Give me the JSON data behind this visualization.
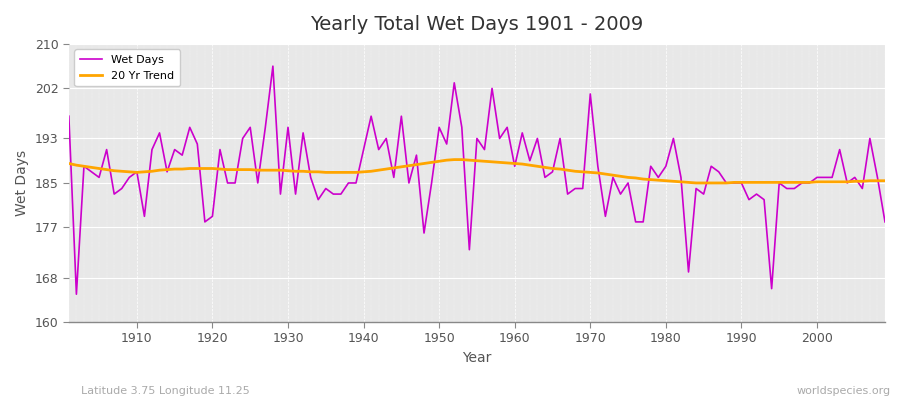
{
  "title": "Yearly Total Wet Days 1901 - 2009",
  "xlabel": "Year",
  "ylabel": "Wet Days",
  "bottom_left_label": "Latitude 3.75 Longitude 11.25",
  "bottom_right_label": "worldspecies.org",
  "ylim": [
    160,
    210
  ],
  "yticks": [
    160,
    168,
    177,
    185,
    193,
    202,
    210
  ],
  "xlim": [
    1901,
    2009
  ],
  "fig_bg_color": "#ffffff",
  "plot_bg_color": "#e8e8e8",
  "line_color": "#cc00cc",
  "trend_color": "#ffa500",
  "years": [
    1901,
    1902,
    1903,
    1904,
    1905,
    1906,
    1907,
    1908,
    1909,
    1910,
    1911,
    1912,
    1913,
    1914,
    1915,
    1916,
    1917,
    1918,
    1919,
    1920,
    1921,
    1922,
    1923,
    1924,
    1925,
    1926,
    1927,
    1928,
    1929,
    1930,
    1931,
    1932,
    1933,
    1934,
    1935,
    1936,
    1937,
    1938,
    1939,
    1940,
    1941,
    1942,
    1943,
    1944,
    1945,
    1946,
    1947,
    1948,
    1949,
    1950,
    1951,
    1952,
    1953,
    1954,
    1955,
    1956,
    1957,
    1958,
    1959,
    1960,
    1961,
    1962,
    1963,
    1964,
    1965,
    1966,
    1967,
    1968,
    1969,
    1970,
    1971,
    1972,
    1973,
    1974,
    1975,
    1976,
    1977,
    1978,
    1979,
    1980,
    1981,
    1982,
    1983,
    1984,
    1985,
    1986,
    1987,
    1988,
    1989,
    1990,
    1991,
    1992,
    1993,
    1994,
    1995,
    1996,
    1997,
    1998,
    1999,
    2000,
    2001,
    2002,
    2003,
    2004,
    2005,
    2006,
    2007,
    2008,
    2009
  ],
  "wet_days": [
    197,
    165,
    188,
    187,
    186,
    191,
    183,
    184,
    186,
    187,
    179,
    191,
    194,
    187,
    191,
    190,
    195,
    192,
    178,
    179,
    191,
    185,
    185,
    193,
    195,
    185,
    195,
    206,
    183,
    195,
    183,
    194,
    186,
    182,
    184,
    183,
    183,
    185,
    185,
    191,
    197,
    191,
    193,
    186,
    197,
    185,
    190,
    176,
    185,
    195,
    192,
    203,
    195,
    173,
    193,
    191,
    202,
    193,
    195,
    188,
    194,
    189,
    193,
    186,
    187,
    193,
    183,
    184,
    184,
    201,
    188,
    179,
    186,
    183,
    185,
    178,
    178,
    188,
    186,
    188,
    193,
    186,
    169,
    184,
    183,
    188,
    187,
    185,
    185,
    185,
    182,
    183,
    182,
    166,
    185,
    184,
    184,
    185,
    185,
    186,
    186,
    186,
    191,
    185,
    186,
    184,
    193,
    186,
    178
  ],
  "trend": [
    188.5,
    188.2,
    188.0,
    187.8,
    187.6,
    187.4,
    187.2,
    187.1,
    187.0,
    186.9,
    187.0,
    187.1,
    187.3,
    187.4,
    187.5,
    187.5,
    187.6,
    187.6,
    187.6,
    187.6,
    187.5,
    187.4,
    187.4,
    187.4,
    187.4,
    187.3,
    187.3,
    187.3,
    187.3,
    187.2,
    187.1,
    187.1,
    187.0,
    187.0,
    186.9,
    186.9,
    186.9,
    186.9,
    186.9,
    187.0,
    187.1,
    187.3,
    187.5,
    187.7,
    187.9,
    188.1,
    188.3,
    188.5,
    188.7,
    188.9,
    189.1,
    189.2,
    189.2,
    189.1,
    189.0,
    188.9,
    188.8,
    188.7,
    188.6,
    188.5,
    188.4,
    188.2,
    188.0,
    187.8,
    187.6,
    187.5,
    187.3,
    187.1,
    187.0,
    186.9,
    186.8,
    186.6,
    186.4,
    186.2,
    186.0,
    185.9,
    185.7,
    185.6,
    185.5,
    185.4,
    185.3,
    185.2,
    185.1,
    185.0,
    185.0,
    185.0,
    185.0,
    185.0,
    185.1,
    185.1,
    185.1,
    185.1,
    185.1,
    185.1,
    185.1,
    185.1,
    185.1,
    185.1,
    185.1,
    185.2,
    185.2,
    185.2,
    185.2,
    185.2,
    185.3,
    185.3,
    185.4,
    185.4,
    185.4
  ]
}
